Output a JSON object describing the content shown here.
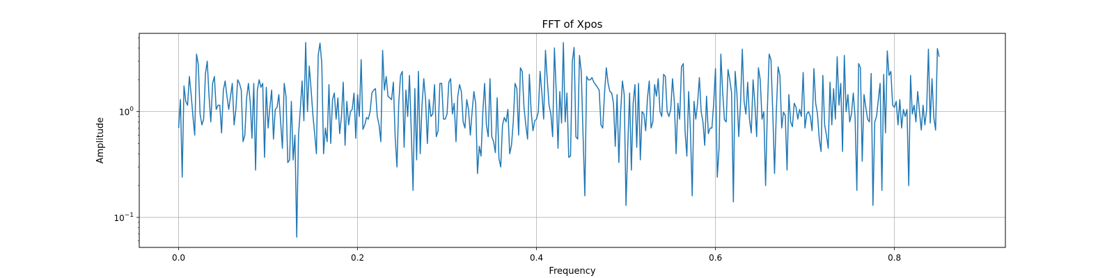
{
  "chart_data": {
    "type": "line",
    "title": "FFT of Xpos",
    "xlabel": "Frequency",
    "ylabel": "Amplitude",
    "yscale": "log",
    "xlim": [
      -0.044,
      0.924
    ],
    "ylim": [
      0.052,
      5.5
    ],
    "grid": true,
    "line_color": "#1f77b4",
    "x_ticks": [
      0.0,
      0.2,
      0.4,
      0.6,
      0.8
    ],
    "x_tick_labels": [
      "0.0",
      "0.2",
      "0.4",
      "0.6",
      "0.8"
    ],
    "y_ticks": [
      0.1,
      1
    ],
    "y_tick_labels": [
      {
        "base": "10",
        "exp": "−1"
      },
      {
        "base": "10",
        "exp": "0"
      }
    ],
    "x_start": 0.0,
    "x_step": 0.002,
    "series": [
      {
        "values": [
          0.7,
          1.3,
          0.24,
          1.75,
          1.25,
          1.15,
          2.15,
          1.45,
          0.9,
          0.6,
          3.5,
          2.8,
          0.95,
          0.75,
          0.85,
          2.3,
          3.0,
          1.4,
          0.8,
          1.85,
          2.15,
          1.05,
          1.15,
          1.15,
          0.63,
          1.6,
          1.95,
          1.4,
          1.05,
          1.4,
          1.85,
          0.75,
          1.05,
          2.0,
          1.85,
          1.6,
          0.52,
          0.6,
          1.35,
          1.85,
          1.25,
          0.56,
          1.85,
          0.28,
          1.6,
          2.0,
          1.7,
          1.85,
          0.37,
          1.7,
          0.7,
          1.1,
          1.6,
          0.55,
          1.05,
          1.1,
          1.45,
          0.8,
          0.45,
          1.85,
          1.4,
          0.33,
          0.35,
          1.25,
          0.35,
          0.6,
          0.065,
          0.6,
          1.05,
          1.95,
          0.82,
          4.5,
          1.0,
          2.7,
          1.65,
          0.95,
          0.62,
          0.4,
          3.4,
          4.45,
          2.85,
          0.4,
          0.7,
          0.52,
          1.8,
          0.5,
          1.3,
          1.5,
          0.85,
          1.35,
          0.62,
          0.9,
          1.9,
          0.48,
          1.25,
          0.75,
          1.0,
          1.05,
          1.5,
          0.56,
          1.45,
          0.9,
          3.1,
          0.68,
          0.75,
          0.88,
          0.85,
          1.0,
          1.5,
          1.6,
          1.65,
          0.9,
          0.75,
          0.52,
          3.8,
          1.6,
          2.15,
          1.4,
          1.35,
          1.3,
          1.9,
          0.58,
          0.3,
          1.2,
          2.2,
          2.4,
          0.46,
          1.6,
          0.9,
          2.2,
          0.65,
          0.18,
          1.65,
          0.35,
          2.4,
          0.4,
          1.15,
          2.05,
          1.3,
          0.5,
          1.3,
          0.9,
          0.95,
          1.8,
          0.58,
          0.66,
          1.85,
          1.85,
          0.85,
          0.85,
          0.95,
          1.9,
          2.05,
          0.95,
          1.2,
          0.52,
          1.4,
          1.8,
          1.55,
          0.8,
          0.7,
          1.3,
          1.05,
          0.6,
          1.0,
          1.55,
          1.2,
          0.26,
          0.47,
          0.38,
          1.0,
          1.85,
          0.75,
          0.58,
          2.05,
          0.58,
          0.52,
          0.41,
          1.35,
          0.36,
          0.3,
          0.75,
          0.88,
          0.8,
          1.05,
          0.4,
          0.48,
          0.8,
          1.85,
          1.65,
          0.6,
          2.6,
          2.4,
          1.1,
          0.75,
          0.55,
          2.25,
          1.0,
          0.66,
          0.82,
          0.85,
          1.0,
          2.4,
          1.5,
          0.85,
          3.8,
          2.0,
          1.15,
          0.95,
          0.58,
          4.0,
          1.55,
          0.45,
          1.55,
          0.78,
          4.5,
          0.8,
          1.5,
          0.37,
          0.38,
          3.0,
          4.05,
          0.58,
          0.55,
          3.4,
          2.4,
          0.6,
          0.16,
          2.15,
          2.0,
          2.0,
          2.1,
          1.9,
          1.8,
          1.7,
          1.6,
          0.75,
          0.7,
          1.5,
          2.6,
          1.85,
          1.55,
          1.5,
          1.2,
          0.47,
          1.45,
          0.33,
          1.0,
          1.95,
          1.45,
          0.13,
          0.48,
          1.5,
          0.28,
          1.2,
          1.8,
          0.46,
          1.85,
          0.35,
          1.0,
          0.95,
          0.66,
          1.35,
          1.95,
          0.7,
          0.8,
          1.8,
          1.4,
          2.05,
          1.0,
          0.9,
          2.25,
          2.15,
          1.0,
          0.9,
          1.05,
          2.05,
          1.25,
          0.4,
          1.2,
          0.85,
          2.65,
          2.85,
          0.65,
          0.38,
          1.55,
          0.66,
          0.16,
          1.25,
          0.85,
          1.2,
          2.1,
          1.0,
          0.8,
          0.48,
          1.4,
          0.62,
          0.7,
          0.7,
          1.2,
          2.55,
          0.24,
          0.45,
          3.5,
          1.55,
          0.84,
          0.8,
          2.5,
          2.0,
          1.5,
          0.14,
          2.4,
          1.45,
          0.58,
          1.2,
          3.9,
          1.25,
          0.95,
          1.9,
          0.85,
          0.63,
          2.0,
          1.2,
          0.58,
          2.6,
          2.0,
          0.85,
          1.0,
          0.2,
          1.05,
          3.5,
          3.1,
          1.0,
          0.26,
          1.0,
          2.65,
          2.2,
          0.7,
          0.99,
          0.92,
          0.28,
          1.45,
          0.8,
          0.72,
          1.2,
          1.1,
          0.85,
          1.05,
          0.9,
          2.35,
          0.7,
          0.95,
          1.0,
          0.9,
          0.66,
          2.55,
          1.2,
          0.95,
          0.55,
          0.42,
          2.2,
          0.75,
          0.6,
          0.45,
          1.9,
          0.75,
          1.65,
          0.85,
          3.3,
          1.15,
          1.85,
          0.42,
          3.4,
          1.0,
          1.45,
          0.8,
          0.95,
          1.5,
          0.9,
          0.18,
          2.85,
          2.6,
          0.34,
          1.45,
          1.1,
          0.85,
          0.8,
          2.3,
          0.13,
          0.8,
          0.9,
          1.3,
          1.85,
          0.18,
          2.25,
          0.63,
          3.75,
          2.2,
          2.4,
          1.15,
          1.1,
          1.25,
          0.75,
          1.3,
          0.7,
          1.05,
          0.9,
          1.05,
          0.2,
          2.2,
          0.95,
          1.15,
          0.8,
          1.55,
          1.0,
          0.67,
          1.15,
          0.75,
          1.05,
          3.9,
          0.78,
          2.05,
          0.88,
          0.67,
          3.95,
          3.3
        ]
      }
    ]
  }
}
